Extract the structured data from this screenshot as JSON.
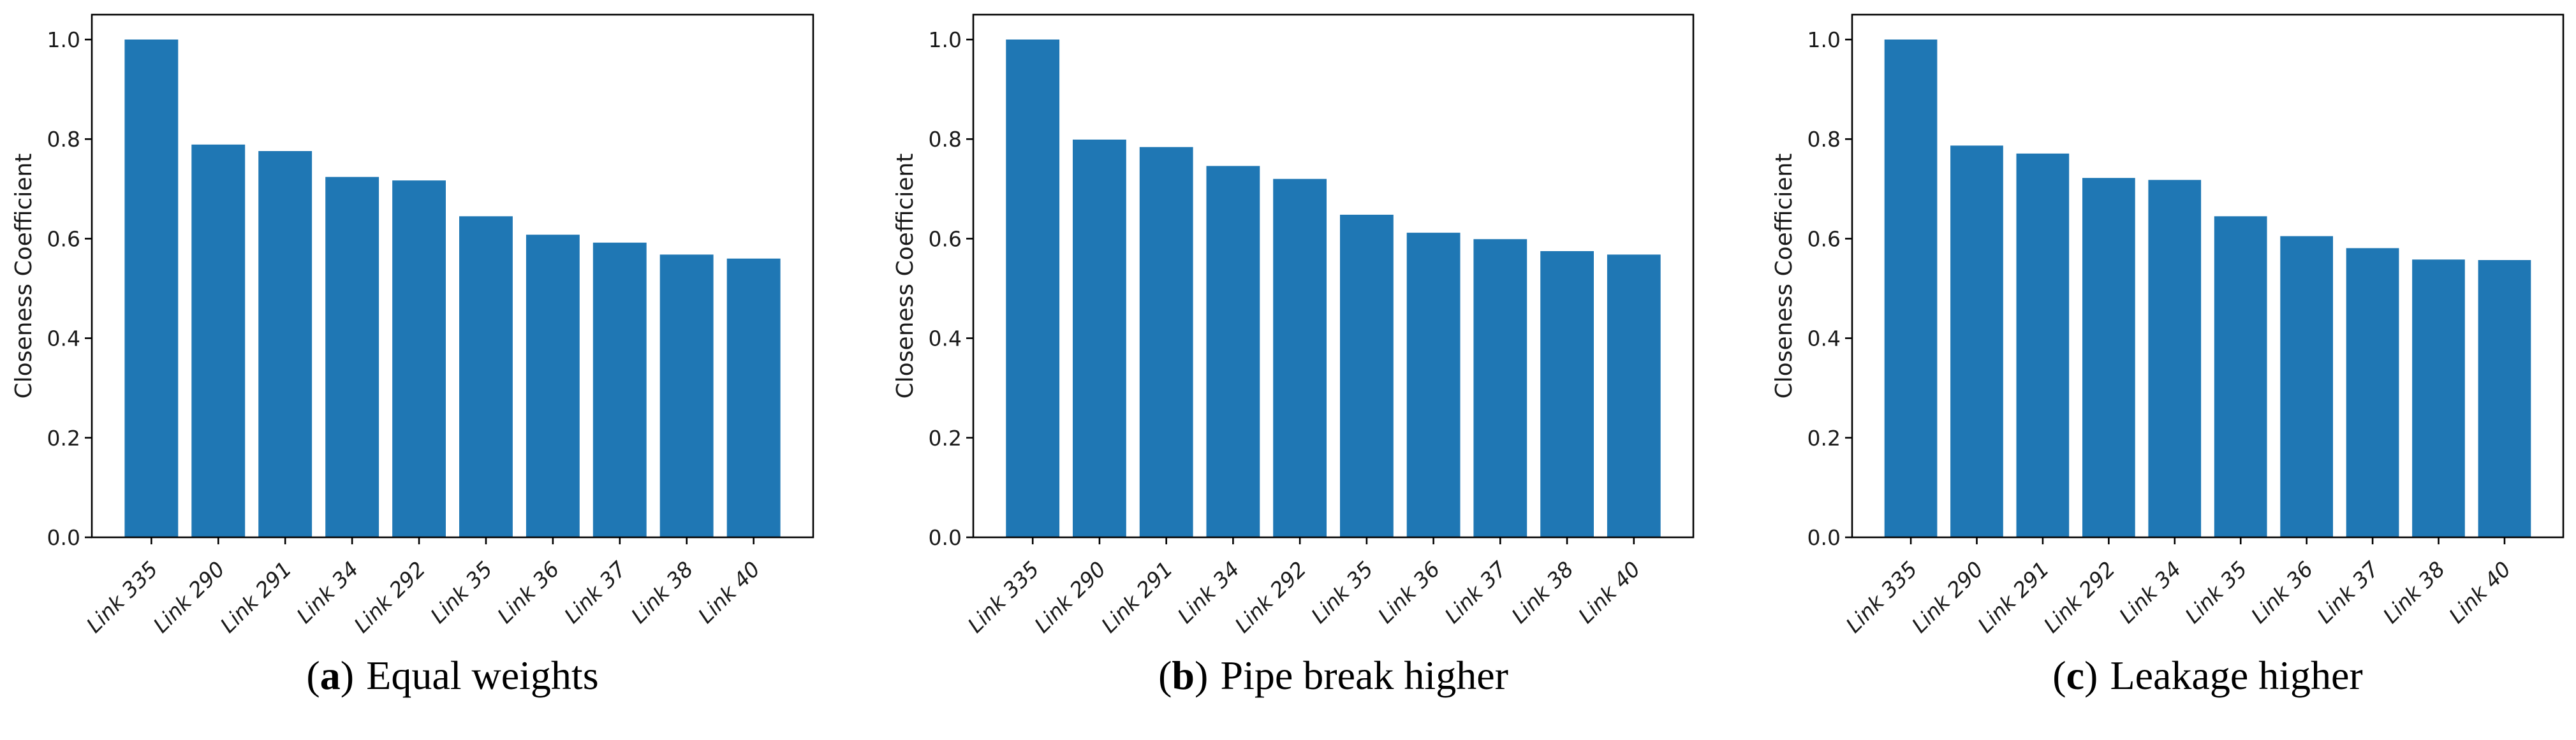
{
  "figure": {
    "bar_color": "#1f77b4",
    "spine_color": "#000000",
    "yticks": [
      "0.0",
      "0.2",
      "0.4",
      "0.6",
      "0.8",
      "1.0"
    ],
    "ylabel": "Closeness Coefficient"
  },
  "chart_data": [
    {
      "type": "bar",
      "title": "(a) Equal weights",
      "caption": {
        "open": "(",
        "letter": "a",
        "close": ")",
        "text": "Equal weights"
      },
      "ylabel": "Closeness Coefficient",
      "ylim": [
        0,
        1.05
      ],
      "grid": false,
      "legend": null,
      "categories": [
        "Link 335",
        "Link 290",
        "Link 291",
        "Link 34",
        "Link 292",
        "Link 35",
        "Link 36",
        "Link 37",
        "Link 38",
        "Link 40"
      ],
      "values": [
        1.0,
        0.789,
        0.776,
        0.724,
        0.717,
        0.645,
        0.608,
        0.592,
        0.568,
        0.56
      ]
    },
    {
      "type": "bar",
      "title": "(b) Pipe break higher",
      "caption": {
        "open": "(",
        "letter": "b",
        "close": ")",
        "text": "Pipe break higher"
      },
      "ylabel": "Closeness Coefficient",
      "ylim": [
        0,
        1.05
      ],
      "grid": false,
      "legend": null,
      "categories": [
        "Link 335",
        "Link 290",
        "Link 291",
        "Link 34",
        "Link 292",
        "Link 35",
        "Link 36",
        "Link 37",
        "Link 38",
        "Link 40"
      ],
      "values": [
        1.0,
        0.799,
        0.784,
        0.746,
        0.72,
        0.648,
        0.612,
        0.599,
        0.575,
        0.568
      ]
    },
    {
      "type": "bar",
      "title": "(c) Leakage higher",
      "caption": {
        "open": "(",
        "letter": "c",
        "close": ")",
        "text": "Leakage higher"
      },
      "ylabel": "Closeness Coefficient",
      "ylim": [
        0,
        1.05
      ],
      "grid": false,
      "legend": null,
      "categories": [
        "Link 335",
        "Link 290",
        "Link 291",
        "Link 292",
        "Link 34",
        "Link 35",
        "Link 36",
        "Link 37",
        "Link 38",
        "Link 40"
      ],
      "values": [
        1.0,
        0.787,
        0.771,
        0.722,
        0.718,
        0.645,
        0.605,
        0.581,
        0.558,
        0.557
      ]
    }
  ]
}
